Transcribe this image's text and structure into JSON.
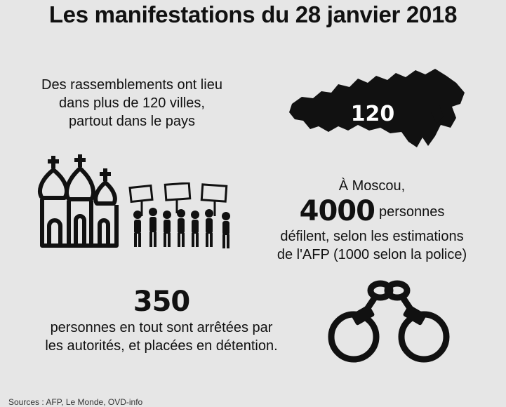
{
  "title": "Les manifestations du 28 janvier 2018",
  "cities": {
    "line1": "Des rassemblements ont lieu",
    "line2": "dans plus de 120 villes,",
    "line3": "partout dans le pays",
    "map_number": "120"
  },
  "moscow": {
    "line1": "À Moscou,",
    "number": "4000",
    "suffix": "personnes",
    "line3": "défilent, selon les estimations",
    "line4": "de l'AFP (1000 selon la police)"
  },
  "arrests": {
    "number": "350",
    "line1": "personnes en tout sont arrêtées par",
    "line2": "les autorités, et placées en détention."
  },
  "source": "Sources : AFP, Le Monde, OVD-info",
  "colors": {
    "background": "#e6e6e6",
    "ink": "#111111"
  },
  "icons": [
    "russia-map-icon",
    "orthodox-church-icon",
    "protesters-icon",
    "handcuffs-icon"
  ]
}
